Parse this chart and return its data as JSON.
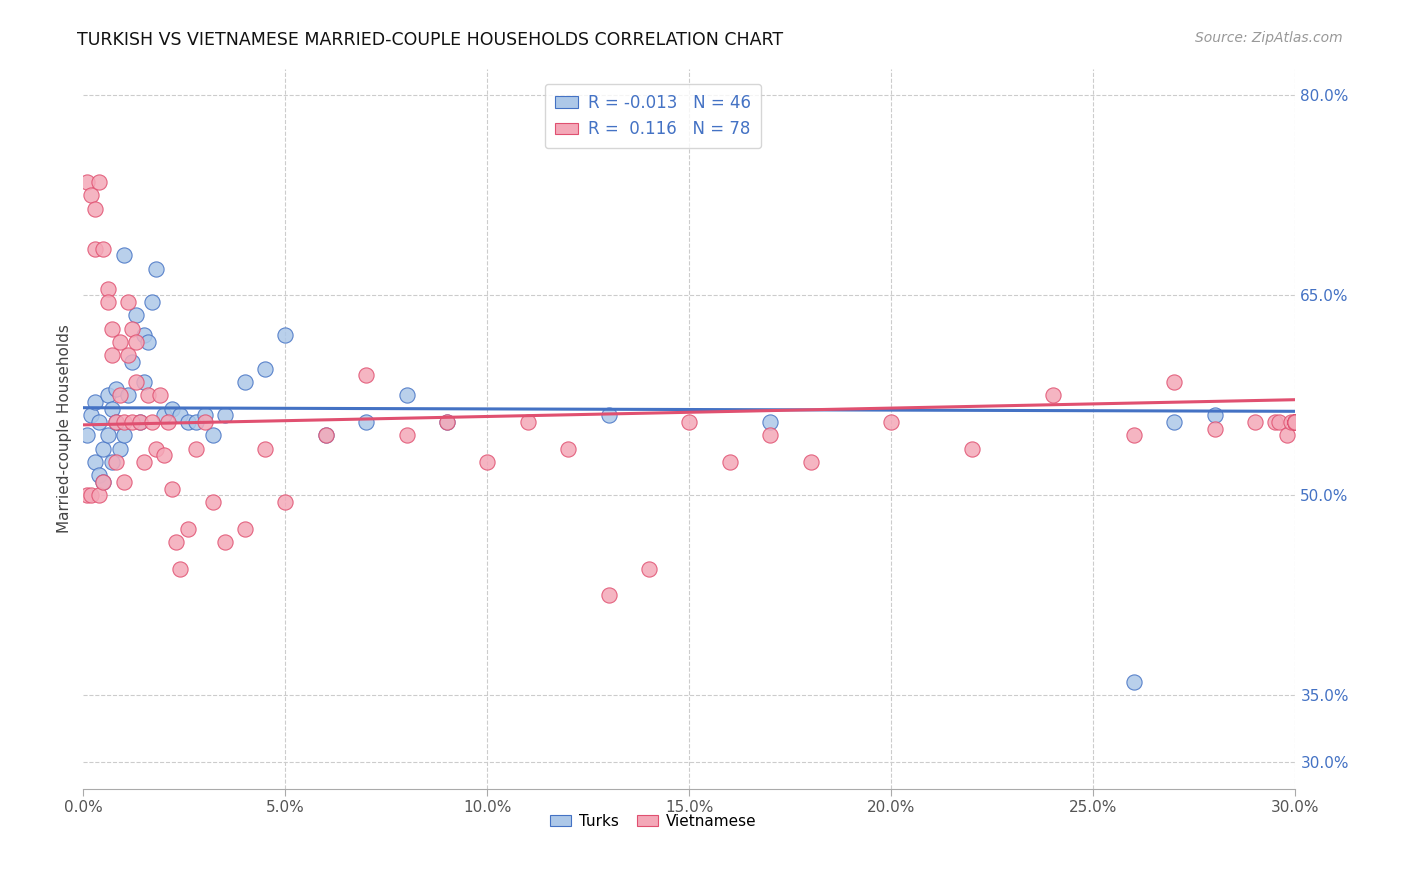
{
  "title": "TURKISH VS VIETNAMESE MARRIED-COUPLE HOUSEHOLDS CORRELATION CHART",
  "source": "Source: ZipAtlas.com",
  "ylabel": "Married-couple Households",
  "x_min": 0.0,
  "x_max": 0.3,
  "y_min": 0.28,
  "y_max": 0.82,
  "turks_R": -0.013,
  "turks_N": 46,
  "viet_R": 0.116,
  "viet_N": 78,
  "turks_color": "#adc8e8",
  "viet_color": "#f4a8b8",
  "turks_line_color": "#4472c4",
  "viet_line_color": "#e05070",
  "grid_color": "#cccccc",
  "right_tick_color": "#4472c4",
  "turks_x": [
    0.001,
    0.002,
    0.003,
    0.003,
    0.004,
    0.004,
    0.005,
    0.005,
    0.006,
    0.006,
    0.007,
    0.007,
    0.008,
    0.008,
    0.009,
    0.01,
    0.01,
    0.011,
    0.012,
    0.013,
    0.014,
    0.015,
    0.015,
    0.016,
    0.017,
    0.018,
    0.02,
    0.022,
    0.024,
    0.026,
    0.028,
    0.03,
    0.032,
    0.035,
    0.04,
    0.045,
    0.05,
    0.06,
    0.07,
    0.08,
    0.09,
    0.13,
    0.17,
    0.26,
    0.27,
    0.28
  ],
  "turks_y": [
    0.545,
    0.56,
    0.57,
    0.525,
    0.555,
    0.515,
    0.535,
    0.51,
    0.575,
    0.545,
    0.525,
    0.565,
    0.58,
    0.555,
    0.535,
    0.68,
    0.545,
    0.575,
    0.6,
    0.635,
    0.555,
    0.585,
    0.62,
    0.615,
    0.645,
    0.67,
    0.56,
    0.565,
    0.56,
    0.555,
    0.555,
    0.56,
    0.545,
    0.56,
    0.585,
    0.595,
    0.62,
    0.545,
    0.555,
    0.575,
    0.555,
    0.56,
    0.555,
    0.36,
    0.555,
    0.56
  ],
  "viet_x": [
    0.001,
    0.001,
    0.002,
    0.002,
    0.003,
    0.003,
    0.004,
    0.004,
    0.005,
    0.005,
    0.006,
    0.006,
    0.007,
    0.007,
    0.008,
    0.008,
    0.009,
    0.009,
    0.01,
    0.01,
    0.011,
    0.011,
    0.012,
    0.012,
    0.013,
    0.013,
    0.014,
    0.015,
    0.016,
    0.017,
    0.018,
    0.019,
    0.02,
    0.021,
    0.022,
    0.023,
    0.024,
    0.026,
    0.028,
    0.03,
    0.032,
    0.035,
    0.04,
    0.045,
    0.05,
    0.06,
    0.07,
    0.08,
    0.09,
    0.1,
    0.11,
    0.12,
    0.13,
    0.14,
    0.15,
    0.16,
    0.17,
    0.18,
    0.2,
    0.22,
    0.24,
    0.26,
    0.27,
    0.28,
    0.29,
    0.295,
    0.296,
    0.298,
    0.299,
    0.3,
    0.3,
    0.3,
    0.3,
    0.3,
    0.3,
    0.3,
    0.3,
    0.3
  ],
  "viet_y": [
    0.5,
    0.735,
    0.725,
    0.5,
    0.715,
    0.685,
    0.735,
    0.5,
    0.51,
    0.685,
    0.655,
    0.645,
    0.605,
    0.625,
    0.555,
    0.525,
    0.615,
    0.575,
    0.51,
    0.555,
    0.645,
    0.605,
    0.555,
    0.625,
    0.585,
    0.615,
    0.555,
    0.525,
    0.575,
    0.555,
    0.535,
    0.575,
    0.53,
    0.555,
    0.505,
    0.465,
    0.445,
    0.475,
    0.535,
    0.555,
    0.495,
    0.465,
    0.475,
    0.535,
    0.495,
    0.545,
    0.59,
    0.545,
    0.555,
    0.525,
    0.555,
    0.535,
    0.425,
    0.445,
    0.555,
    0.525,
    0.545,
    0.525,
    0.555,
    0.535,
    0.575,
    0.545,
    0.585,
    0.55,
    0.555,
    0.555,
    0.555,
    0.545,
    0.555,
    0.555,
    0.555,
    0.555,
    0.555,
    0.555,
    0.555,
    0.555,
    0.555,
    0.555
  ]
}
